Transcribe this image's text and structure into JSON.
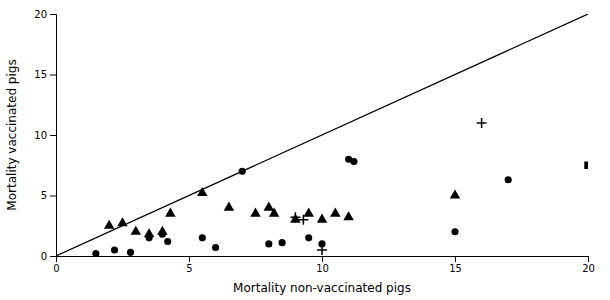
{
  "chart_data": {
    "type": "scatter",
    "xlabel": "Mortality non-vaccinated pigs",
    "ylabel": "Mortality vaccinated pigs",
    "xlim": [
      0,
      20
    ],
    "ylim": [
      0,
      20
    ],
    "xticks": [
      0,
      5,
      10,
      15,
      20
    ],
    "yticks": [
      0,
      5,
      10,
      15,
      20
    ],
    "grid": false,
    "series": [
      {
        "type": "line",
        "color": "#000000",
        "x": [
          0,
          20
        ],
        "values": [
          0,
          20
        ]
      },
      {
        "type": "scatter",
        "marker": "circle",
        "color": "#000000",
        "x": [
          1.5,
          2.2,
          2.8,
          3.5,
          4.0,
          4.2,
          5.5,
          6.0,
          7.0,
          8.0,
          8.5,
          9.5,
          10.0,
          11.0,
          11.2,
          15.0,
          17.0
        ],
        "values": [
          0.2,
          0.5,
          0.3,
          1.5,
          1.8,
          1.2,
          1.5,
          0.7,
          7.0,
          1.0,
          1.1,
          1.5,
          1.0,
          8.0,
          7.8,
          2.0,
          6.3
        ]
      },
      {
        "type": "scatter",
        "marker": "triangle",
        "color": "#000000",
        "x": [
          2.0,
          2.5,
          3.0,
          3.5,
          4.0,
          4.3,
          5.5,
          6.5,
          7.5,
          8.0,
          8.2,
          9.0,
          9.5,
          10.0,
          10.5,
          11.0,
          15.0
        ],
        "values": [
          2.5,
          2.7,
          2.0,
          1.8,
          2.0,
          3.5,
          5.2,
          4.0,
          3.5,
          4.0,
          3.5,
          3.0,
          3.5,
          3.0,
          3.5,
          3.2,
          5.0
        ]
      },
      {
        "type": "scatter",
        "marker": "plus",
        "color": "#000000",
        "x": [
          9.0,
          9.3,
          10.0,
          16.0
        ],
        "values": [
          3.2,
          3.0,
          0.5,
          11.0
        ]
      },
      {
        "type": "scatter",
        "marker": "square",
        "color": "#000000",
        "x": [
          20.0
        ],
        "values": [
          7.5
        ]
      }
    ]
  }
}
